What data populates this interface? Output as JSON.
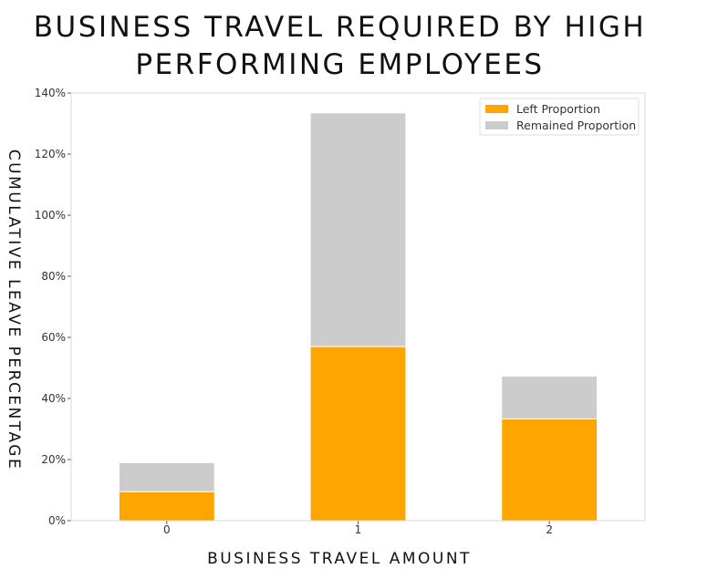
{
  "chart_data": {
    "type": "bar",
    "stacked": true,
    "title": "BUSINESS TRAVEL REQUIRED BY HIGH PERFORMING EMPLOYEES",
    "xlabel": "BUSINESS TRAVEL AMOUNT",
    "ylabel": "CUMULATIVE LEAVE PERCENTAGE",
    "categories": [
      "0",
      "1",
      "2"
    ],
    "series": [
      {
        "name": "Left Proportion",
        "color": "#FFA500",
        "values": [
          9.5,
          57.0,
          33.3
        ]
      },
      {
        "name": "Remained Proportion",
        "color": "#CCCCCC",
        "values": [
          9.5,
          76.5,
          14.0
        ]
      }
    ],
    "ylim": [
      0,
      140
    ],
    "yticks": [
      0,
      20,
      40,
      60,
      80,
      100,
      120,
      140
    ],
    "ytick_suffix": "%",
    "grid": false,
    "legend_position": "top-right"
  }
}
